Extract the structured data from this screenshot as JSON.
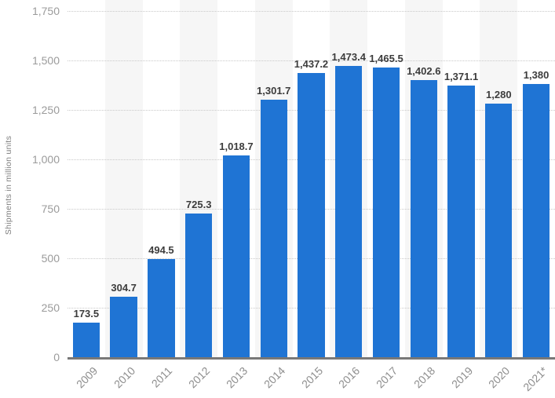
{
  "chart_data": {
    "type": "bar",
    "title": "",
    "xlabel": "",
    "ylabel": "Shipments in million units",
    "categories": [
      "2009",
      "2010",
      "2011",
      "2012",
      "2013",
      "2014",
      "2015",
      "2016",
      "2017",
      "2018",
      "2019",
      "2020",
      "2021*"
    ],
    "values": [
      173.5,
      304.7,
      494.5,
      725.3,
      1018.7,
      1301.7,
      1437.2,
      1473.4,
      1465.5,
      1402.6,
      1371.1,
      1280,
      1380
    ],
    "value_labels": [
      "173.5",
      "304.7",
      "494.5",
      "725.3",
      "1,018.7",
      "1,301.7",
      "1,437.2",
      "1,473.4",
      "1,465.5",
      "1,402.6",
      "1,371.1",
      "1,280",
      "1,380"
    ],
    "ylim": [
      0,
      1750
    ],
    "ytick_interval": 250,
    "ytick_labels": [
      "0",
      "250",
      "500",
      "750",
      "1,000",
      "1,250",
      "1,500",
      "1,750"
    ],
    "grid": "horizontal-dotted",
    "legend": "none",
    "plot_background": "alternating vertical bands",
    "colors": {
      "bar": "#1f74d4",
      "band": "#f6f6f6",
      "gridline": "#c9c9c9",
      "axis_line": "#787878",
      "value_label": "#3c3c3c",
      "y_tick_label": "#9b9b9b",
      "x_tick_label": "#8e8e8e",
      "background": "#ffffff"
    }
  }
}
